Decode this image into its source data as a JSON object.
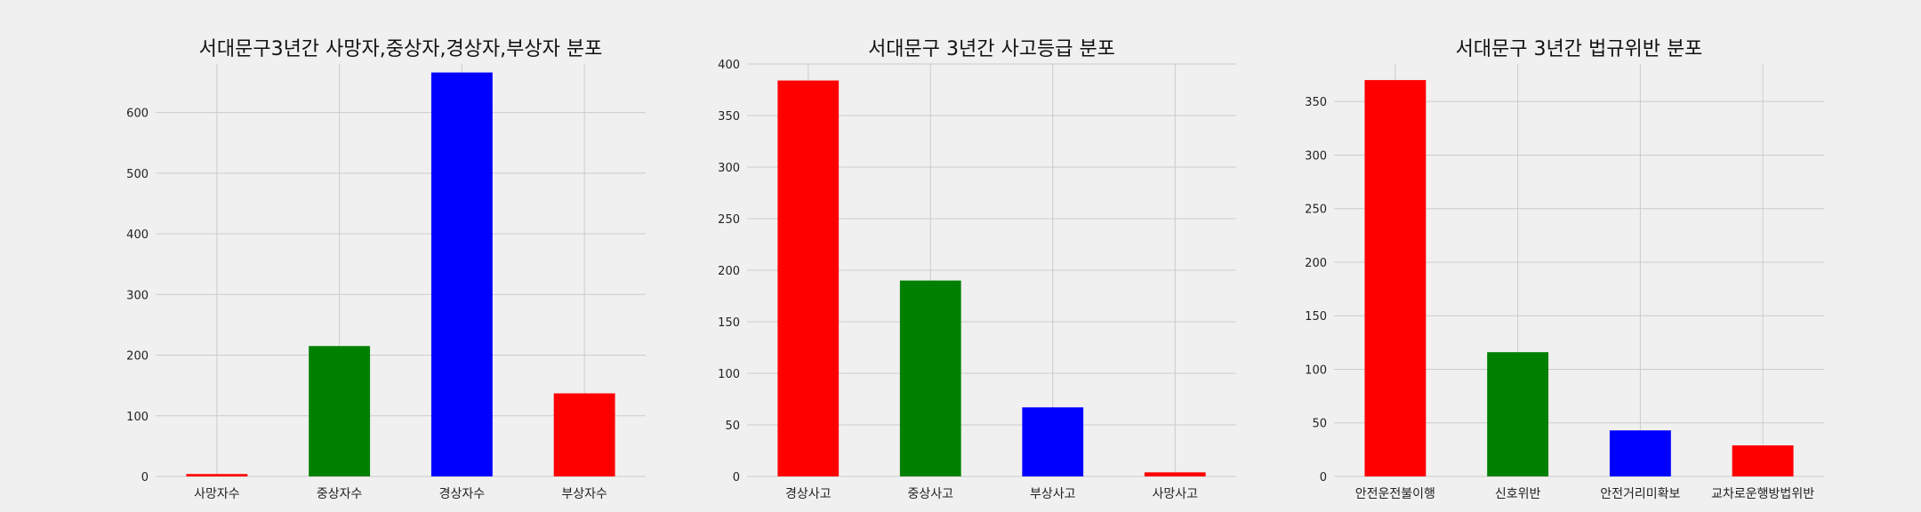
{
  "chart_data": [
    {
      "type": "bar",
      "title": "서대문구3년간 사망자,중상자,경상자,부상자 분포",
      "categories": [
        "사망자수",
        "중상자수",
        "경상자수",
        "부상자수"
      ],
      "values": [
        4,
        215,
        666,
        137
      ],
      "colors": [
        "#ff0000",
        "#008000",
        "#0000ff",
        "#ff0000"
      ],
      "xlabel": "",
      "ylabel": "",
      "ylim": [
        0,
        680
      ],
      "yticks": [
        0,
        100,
        200,
        300,
        400,
        500,
        600
      ],
      "grid": true
    },
    {
      "type": "bar",
      "title": "서대문구 3년간 사고등급 분포",
      "categories": [
        "경상사고",
        "중상사고",
        "부상사고",
        "사망사고"
      ],
      "values": [
        384,
        190,
        67,
        4
      ],
      "colors": [
        "#ff0000",
        "#008000",
        "#0000ff",
        "#ff0000"
      ],
      "xlabel": "",
      "ylabel": "",
      "ylim": [
        0,
        400
      ],
      "yticks": [
        0,
        50,
        100,
        150,
        200,
        250,
        300,
        350,
        400
      ],
      "grid": true
    },
    {
      "type": "bar",
      "title": "서대문구 3년간 법규위반 분포",
      "categories": [
        "안전운전불이행",
        "신호위반",
        "안전거리미확보",
        "교차로운행방법위반"
      ],
      "values": [
        370,
        116,
        43,
        29
      ],
      "colors": [
        "#ff0000",
        "#008000",
        "#0000ff",
        "#ff0000"
      ],
      "xlabel": "",
      "ylabel": "",
      "ylim": [
        0,
        385
      ],
      "yticks": [
        0,
        50,
        100,
        150,
        200,
        250,
        300,
        350
      ],
      "grid": true
    }
  ]
}
